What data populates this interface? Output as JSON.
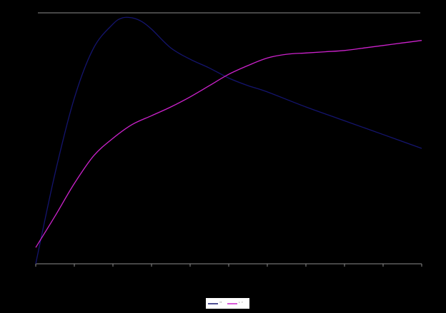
{
  "chart_data": {
    "type": "line",
    "title": "",
    "xlabel": "",
    "ylabel": "",
    "xlim": [
      0,
      10
    ],
    "ylim": [
      0,
      1
    ],
    "grid": false,
    "x_tick_count": 10,
    "legend_position": "bottom-center",
    "background": "#000000",
    "axis_color": "#8c8c8c",
    "series": [
      {
        "name": "",
        "color": "#14146e",
        "x": [
          0,
          0.5,
          1.0,
          1.5,
          2.0,
          2.25,
          2.5,
          2.75,
          3.0,
          3.5,
          4.0,
          4.5,
          5.0,
          5.5,
          6.0,
          7.0,
          8.0,
          9.0,
          10.0
        ],
        "y": [
          0.0,
          0.36,
          0.66,
          0.86,
          0.955,
          0.98,
          0.98,
          0.965,
          0.935,
          0.86,
          0.815,
          0.78,
          0.74,
          0.71,
          0.685,
          0.625,
          0.57,
          0.515,
          0.46
        ]
      },
      {
        "name": "",
        "color": "#cc22cc",
        "x": [
          0,
          0.5,
          1.0,
          1.5,
          2.0,
          2.5,
          3.0,
          3.5,
          4.0,
          4.5,
          5.0,
          5.5,
          6.0,
          6.5,
          7.0,
          7.5,
          8.0,
          8.5,
          9.0,
          9.5,
          10.0
        ],
        "y": [
          0.065,
          0.19,
          0.32,
          0.43,
          0.5,
          0.555,
          0.59,
          0.625,
          0.665,
          0.71,
          0.755,
          0.79,
          0.82,
          0.835,
          0.84,
          0.845,
          0.85,
          0.86,
          0.87,
          0.88,
          0.89
        ]
      }
    ],
    "legend": [
      {
        "label": "’’",
        "color": "#14146e"
      },
      {
        "label": "‘ ’",
        "color": "#cc22cc"
      }
    ]
  }
}
